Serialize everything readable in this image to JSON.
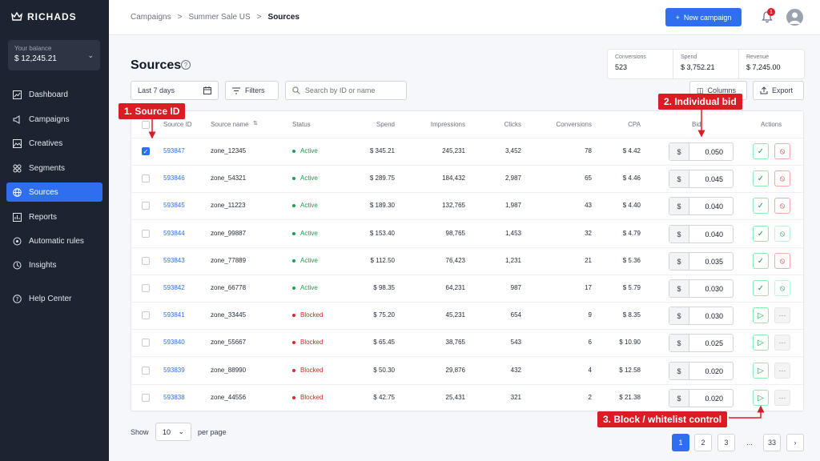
{
  "brand": "RICHADS",
  "balance": {
    "label": "Your balance",
    "value": "$ 12,245.21"
  },
  "nav": [
    {
      "label": "Dashboard",
      "icon": "chart-icon"
    },
    {
      "label": "Campaigns",
      "icon": "megaphone-icon"
    },
    {
      "label": "Creatives",
      "icon": "image-icon"
    },
    {
      "label": "Segments",
      "icon": "grid-icon"
    },
    {
      "label": "Sources",
      "icon": "globe-icon",
      "active": true
    },
    {
      "label": "Reports",
      "icon": "bar-chart-icon"
    },
    {
      "label": "Automatic rules",
      "icon": "rules-icon"
    },
    {
      "label": "Insights",
      "icon": "insights-icon"
    },
    {
      "label": "Help Center",
      "icon": "help-icon"
    }
  ],
  "breadcrumb": [
    "Campaigns",
    "Summer Sale US",
    "Sources"
  ],
  "topbar": {
    "new_campaign": "New campaign",
    "notif_count": "1"
  },
  "page": {
    "title": "Sources",
    "help": "?"
  },
  "stats": [
    {
      "label": "Conversions",
      "value": "523"
    },
    {
      "label": "Spend",
      "value": "$ 3,752.21"
    },
    {
      "label": "Revenue",
      "value": "$ 7,245.00"
    }
  ],
  "toolbar": {
    "date_range": "Last 7 days",
    "filters": "Filters",
    "search_placeholder": "Search by ID or name",
    "columns": "Columns",
    "export": "Export"
  },
  "table": {
    "headers": [
      "Source ID",
      "Source name",
      "Status",
      "Spend",
      "Impressions",
      "Clicks",
      "Conversions",
      "CPA",
      "Bid",
      "Actions"
    ],
    "rows": [
      {
        "id": "593847",
        "name": "zone_12345",
        "status": "Active",
        "spend": "$ 345.21",
        "impressions": "245,231",
        "clicks": "3,452",
        "conversions": "78",
        "cpa": "$ 4.42",
        "currency": "$",
        "bid": "0.050",
        "checked": true
      },
      {
        "id": "593846",
        "name": "zone_54321",
        "status": "Active",
        "spend": "$ 289.75",
        "impressions": "184,432",
        "clicks": "2,987",
        "conversions": "65",
        "cpa": "$ 4.46",
        "currency": "$",
        "bid": "0.045"
      },
      {
        "id": "593845",
        "name": "zone_11223",
        "status": "Active",
        "spend": "$ 189.30",
        "impressions": "132,765",
        "clicks": "1,987",
        "conversions": "43",
        "cpa": "$ 4.40",
        "currency": "$",
        "bid": "0.040"
      },
      {
        "id": "593844",
        "name": "zone_99887",
        "status": "Active",
        "spend": "$ 153.40",
        "impressions": "98,765",
        "clicks": "1,453",
        "conversions": "32",
        "cpa": "$ 4.79",
        "currency": "$",
        "bid": "0.040"
      },
      {
        "id": "593843",
        "name": "zone_77889",
        "status": "Active",
        "spend": "$ 112.50",
        "impressions": "76,423",
        "clicks": "1,231",
        "conversions": "21",
        "cpa": "$ 5.36",
        "currency": "$",
        "bid": "0.035"
      },
      {
        "id": "593842",
        "name": "zone_66778",
        "status": "Active",
        "spend": "$ 98.35",
        "impressions": "64,231",
        "clicks": "987",
        "conversions": "17",
        "cpa": "$ 5.79",
        "currency": "$",
        "bid": "0.030"
      },
      {
        "id": "593841",
        "name": "zone_33445",
        "status": "Blocked",
        "spend": "$ 75.20",
        "impressions": "45,231",
        "clicks": "654",
        "conversions": "9",
        "cpa": "$ 8.35",
        "currency": "$",
        "bid": "0.030"
      },
      {
        "id": "593840",
        "name": "zone_55667",
        "status": "Blocked",
        "spend": "$ 65.45",
        "impressions": "38,765",
        "clicks": "543",
        "conversions": "6",
        "cpa": "$ 10.90",
        "currency": "$",
        "bid": "0.025"
      },
      {
        "id": "593839",
        "name": "zone_88990",
        "status": "Blocked",
        "spend": "$ 50.30",
        "impressions": "29,876",
        "clicks": "432",
        "conversions": "4",
        "cpa": "$ 12.58",
        "currency": "$",
        "bid": "0.020"
      },
      {
        "id": "593838",
        "name": "zone_44556",
        "status": "Blocked",
        "spend": "$ 42.75",
        "impressions": "25,431",
        "clicks": "321",
        "conversions": "2",
        "cpa": "$ 21.38",
        "currency": "$",
        "bid": "0.020"
      }
    ]
  },
  "annotations": [
    "1. Source ID",
    "2. Individual bid",
    "3. Block / whitelist control"
  ],
  "pagination": {
    "show": "Show",
    "per_page_value": "10",
    "per_page": "per page",
    "pages": [
      "1",
      "2",
      "3",
      "...",
      "33"
    ],
    "current": "1"
  },
  "colors": {
    "accent": "#2f6fef",
    "sidebar": "#1c2331",
    "active": "#16a34a",
    "blocked": "#dc2626",
    "annotation": "#dc1c24"
  }
}
